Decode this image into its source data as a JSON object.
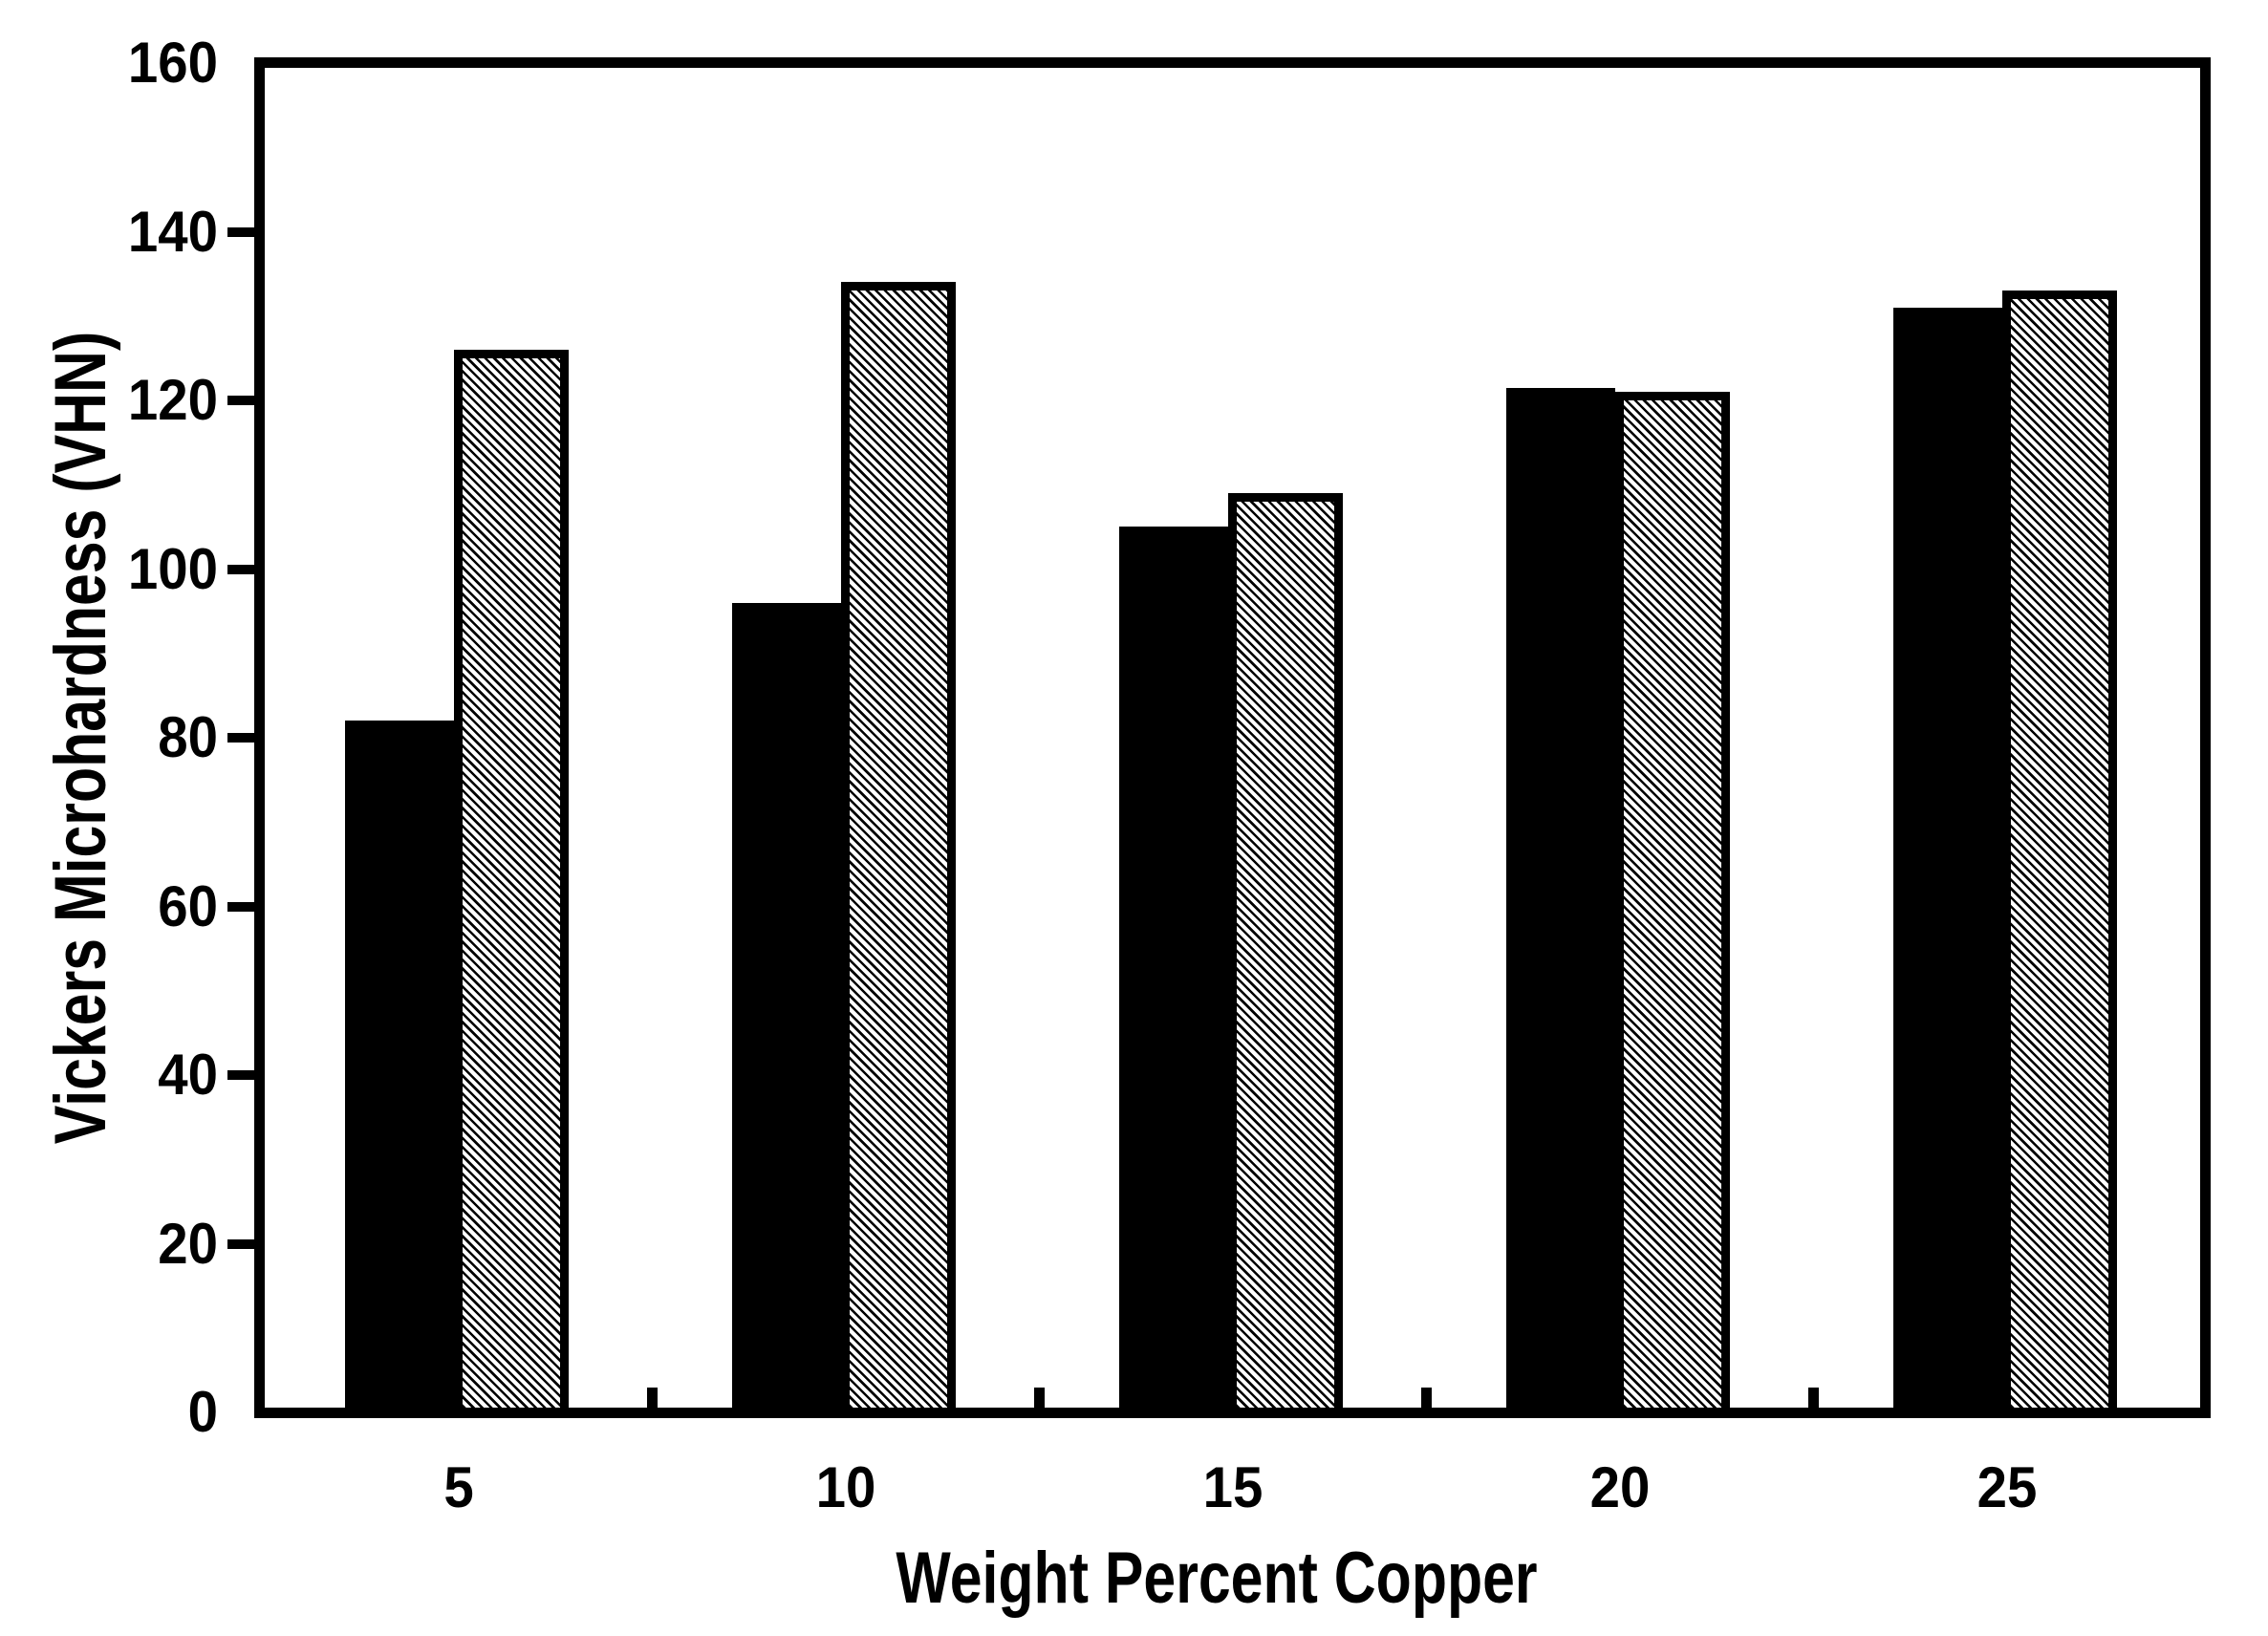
{
  "figure": {
    "background_color": "#ffffff",
    "frame_color": "#000000",
    "text_color": "#000000"
  },
  "chart_data": {
    "type": "bar",
    "title": "",
    "xlabel": "Weight Percent Copper",
    "ylabel": "Vickers Microhardness (VHN)",
    "categories": [
      "5",
      "10",
      "15",
      "20",
      "25"
    ],
    "series": [
      {
        "name": "solid-black-bars",
        "pattern": "solid",
        "fill": "#000000",
        "values": [
          82,
          96,
          105,
          121.5,
          131
        ]
      },
      {
        "name": "diagonal-hatched-bars",
        "pattern": "downward-diagonal-hatch",
        "fill": "#ffffff",
        "hatch_color": "#000000",
        "values": [
          126,
          134,
          109,
          121,
          133
        ]
      }
    ],
    "ylim": [
      0,
      160
    ],
    "yticks": [
      0,
      20,
      40,
      60,
      80,
      100,
      120,
      140,
      160
    ],
    "ytick_step": 20,
    "grid": false,
    "legend": "none"
  }
}
